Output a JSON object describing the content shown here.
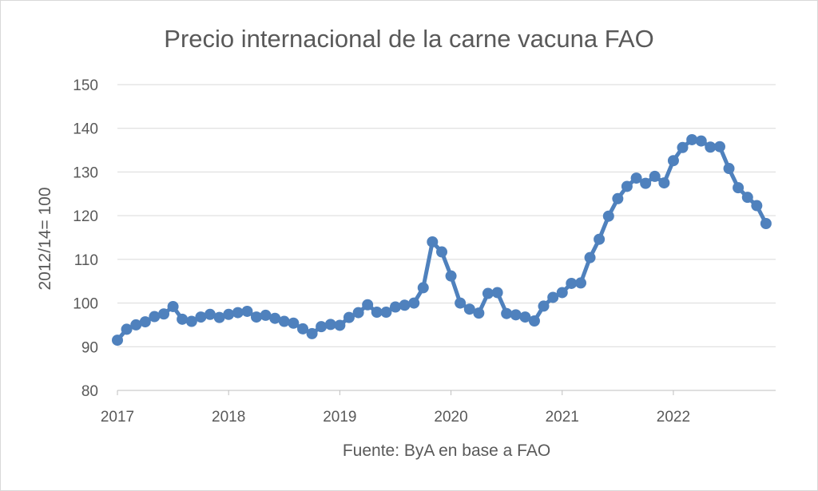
{
  "chart_data": {
    "type": "line",
    "title": "Precio internacional de la carne vacuna FAO",
    "ylabel": "2012/14= 100",
    "xlabel": "Fuente: ByA en base a FAO",
    "ylim": [
      80,
      150
    ],
    "yticks": [
      80,
      90,
      100,
      110,
      120,
      130,
      140,
      150
    ],
    "xlim": [
      2017,
      2022.92
    ],
    "xticks": [
      "2017",
      "2018",
      "2019",
      "2020",
      "2021",
      "2022"
    ],
    "grid": true,
    "legend": "none",
    "color": "#4f81bd",
    "series": [
      {
        "x": [
          2017.0,
          2017.083,
          2017.167,
          2017.25,
          2017.333,
          2017.417,
          2017.5,
          2017.583,
          2017.667,
          2017.75,
          2017.833,
          2017.917,
          2018.0,
          2018.083,
          2018.167,
          2018.25,
          2018.333,
          2018.417,
          2018.5,
          2018.583,
          2018.667,
          2018.75,
          2018.833,
          2018.917,
          2019.0,
          2019.083,
          2019.167,
          2019.25,
          2019.333,
          2019.417,
          2019.5,
          2019.583,
          2019.667,
          2019.75,
          2019.833,
          2019.917,
          2020.0,
          2020.083,
          2020.167,
          2020.25,
          2020.333,
          2020.417,
          2020.5,
          2020.583,
          2020.667,
          2020.75,
          2020.833,
          2020.917,
          2021.0,
          2021.083,
          2021.167,
          2021.25,
          2021.333,
          2021.417,
          2021.5,
          2021.583,
          2021.667,
          2021.75,
          2021.833,
          2021.917,
          2022.0,
          2022.083,
          2022.167,
          2022.25,
          2022.333,
          2022.417,
          2022.5,
          2022.583,
          2022.667,
          2022.75,
          2022.833
        ],
        "values": [
          91.5,
          94,
          95,
          95.7,
          96.9,
          97.5,
          99.2,
          96.3,
          95.8,
          96.8,
          97.4,
          96.7,
          97.4,
          97.8,
          98.1,
          96.8,
          97.2,
          96.5,
          95.8,
          95.4,
          94.1,
          93,
          94.6,
          95.1,
          94.9,
          96.7,
          97.8,
          99.6,
          97.9,
          97.9,
          99.1,
          99.5,
          100,
          103.5,
          114,
          111.7,
          106.2,
          100,
          98.6,
          97.7,
          102.2,
          102.4,
          97.6,
          97.3,
          96.8,
          95.9,
          99.3,
          101.3,
          102.4,
          104.5,
          104.6,
          110.4,
          114.6,
          119.9,
          123.9,
          126.7,
          128.6,
          127.4,
          129,
          127.5,
          132.6,
          135.6,
          137.4,
          137.1,
          135.7,
          135.8,
          130.8,
          126.4,
          124.2,
          122.3,
          118.2
        ]
      }
    ]
  }
}
